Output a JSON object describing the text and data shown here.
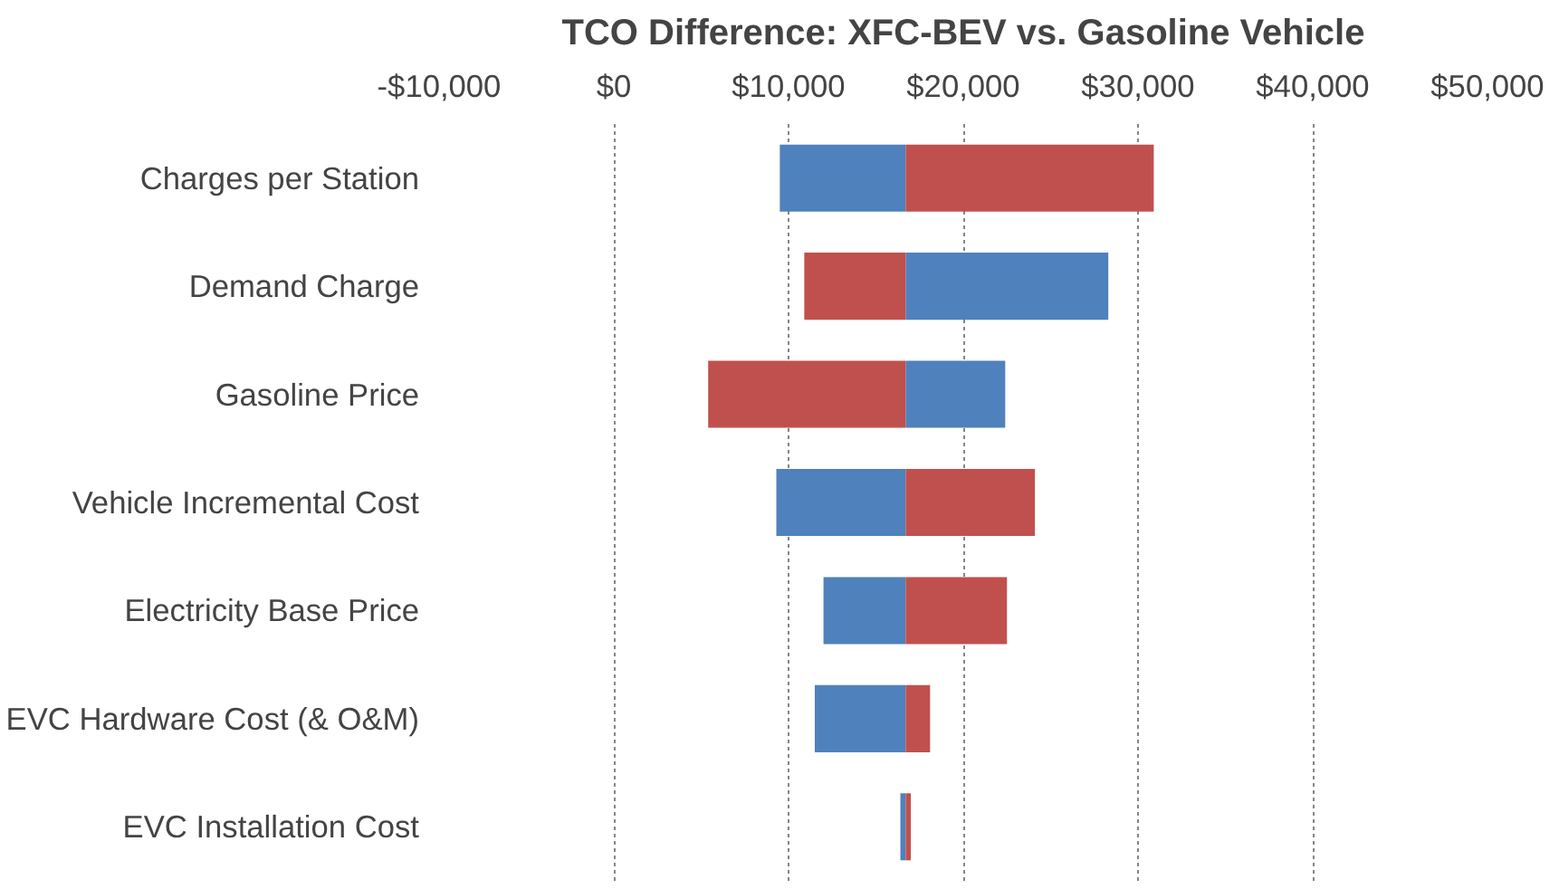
{
  "chart_data": {
    "type": "bar",
    "orientation": "horizontal",
    "title": "TCO Difference: XFC-BEV vs. Gasoline Vehicle",
    "categories": [
      "Charges per Station",
      "Demand Charge",
      "Gasoline Price",
      "Vehicle Incremental Cost",
      "Electricity Base Price",
      "EVC Hardware Cost (& O&M)",
      "EVC Installation Cost"
    ],
    "series": [
      {
        "color": "#4f81bd",
        "base": [
          9500,
          16700,
          16700,
          9300,
          12000,
          11500,
          16400
        ],
        "values": [
          7200,
          11600,
          5700,
          7400,
          4700,
          5200,
          300
        ]
      },
      {
        "color": "#c0504d",
        "base": [
          16700,
          10900,
          5400,
          16700,
          16700,
          16700,
          16700
        ],
        "values": [
          14200,
          5800,
          11300,
          7400,
          5800,
          1400,
          300
        ]
      }
    ],
    "xlim": [
      -10000,
      50000
    ],
    "xticks": [
      {
        "value": -10000,
        "label": "-$10,000"
      },
      {
        "value": 0,
        "label": "$0"
      },
      {
        "value": 10000,
        "label": "$10,000"
      },
      {
        "value": 20000,
        "label": "$20,000"
      },
      {
        "value": 30000,
        "label": "$30,000"
      },
      {
        "value": 40000,
        "label": "$40,000"
      },
      {
        "value": 50000,
        "label": "$50,000"
      }
    ],
    "grid": "x"
  }
}
